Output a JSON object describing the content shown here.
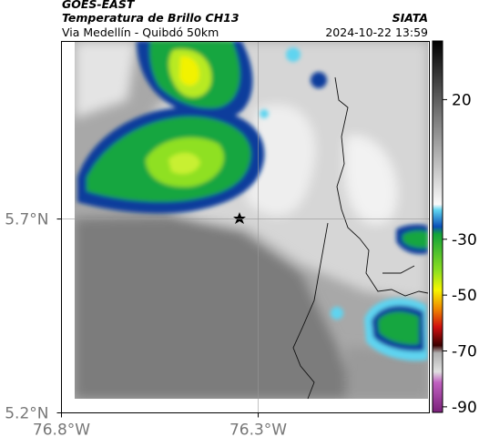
{
  "chart_data": {
    "type": "map",
    "title": "GOES-EAST",
    "subtitle": "Temperatura de Brillo CH13",
    "region": "Via Medellín - Quibdó 50km",
    "source": "SIATA",
    "timestamp": "2024-10-22 13:59",
    "xlim": [
      -76.8,
      -75.865
    ],
    "ylim": [
      5.2,
      6.158
    ],
    "xticks": [
      {
        "value": -76.8,
        "label": "76.8°W"
      },
      {
        "value": -76.3,
        "label": "76.3°W"
      }
    ],
    "yticks": [
      {
        "value": 5.2,
        "label": "5.2°N"
      },
      {
        "value": 5.7,
        "label": "5.7°N"
      }
    ],
    "grid": true,
    "colorbar": {
      "clim": [
        -92,
        41
      ],
      "ticks": [
        20,
        -30,
        -50,
        -70,
        -90
      ]
    }
  }
}
